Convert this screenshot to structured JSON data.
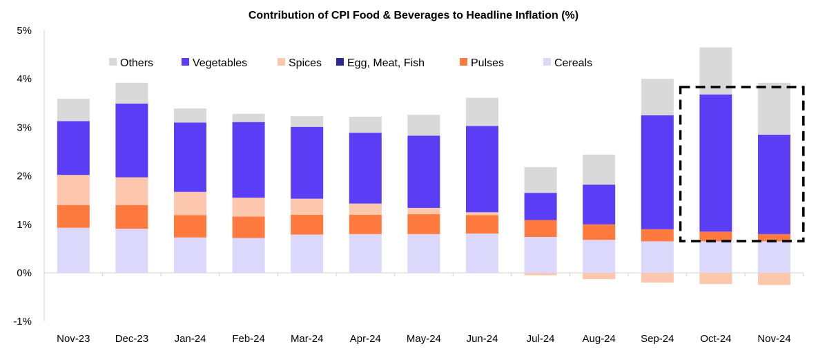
{
  "chart_data": {
    "type": "bar",
    "stacked": true,
    "title": "Contribution of CPI Food & Beverages to Headline Inflation (%)",
    "xlabel": "",
    "ylabel": "",
    "ylim": [
      -1,
      5
    ],
    "yticks": [
      "-1%",
      "0%",
      "1%",
      "2%",
      "3%",
      "4%",
      "5%"
    ],
    "ytick_values": [
      -1,
      0,
      1,
      2,
      3,
      4,
      5
    ],
    "grid": false,
    "legend_position": "top-left",
    "categories": [
      "Nov-23",
      "Dec-23",
      "Jan-24",
      "Feb-24",
      "Mar-24",
      "Apr-24",
      "May-24",
      "Jun-24",
      "Jul-24",
      "Aug-24",
      "Sep-24",
      "Oct-24",
      "Nov-24"
    ],
    "series": [
      {
        "name": "Cereals",
        "color": "#dcd8fc",
        "values": [
          0.93,
          0.91,
          0.73,
          0.72,
          0.79,
          0.8,
          0.8,
          0.81,
          0.74,
          0.68,
          0.65,
          0.65,
          0.65
        ]
      },
      {
        "name": "Pulses",
        "color": "#ff7a3f",
        "values": [
          0.47,
          0.49,
          0.46,
          0.44,
          0.41,
          0.4,
          0.41,
          0.38,
          0.35,
          0.32,
          0.25,
          0.2,
          0.15
        ]
      },
      {
        "name": "Egg, Meat, Fish",
        "color": "#2b2a8f",
        "values": [
          0.0,
          0.0,
          0.0,
          0.0,
          0.0,
          0.0,
          0.0,
          0.0,
          0.0,
          0.0,
          0.0,
          0.0,
          0.0
        ]
      },
      {
        "name": "Spices",
        "color": "#fcc7ad",
        "values": [
          0.62,
          0.57,
          0.48,
          0.39,
          0.33,
          0.23,
          0.13,
          0.06,
          -0.05,
          -0.13,
          -0.2,
          -0.23,
          -0.25
        ]
      },
      {
        "name": "Vegetables",
        "color": "#5b3df5",
        "values": [
          1.11,
          1.52,
          1.43,
          1.56,
          1.48,
          1.46,
          1.49,
          1.78,
          0.56,
          0.82,
          2.35,
          2.83,
          2.05
        ]
      },
      {
        "name": "Others",
        "color": "#d9d9d9",
        "values": [
          0.46,
          0.43,
          0.29,
          0.17,
          0.22,
          0.33,
          0.43,
          0.58,
          0.53,
          0.62,
          0.75,
          0.97,
          1.07
        ]
      }
    ],
    "legend_order": [
      "Others",
      "Vegetables",
      "Spices",
      "Egg, Meat, Fish",
      "Pulses",
      "Cereals"
    ],
    "highlight": {
      "categories": [
        "Oct-24",
        "Nov-24"
      ],
      "style": "dashed-box"
    }
  }
}
